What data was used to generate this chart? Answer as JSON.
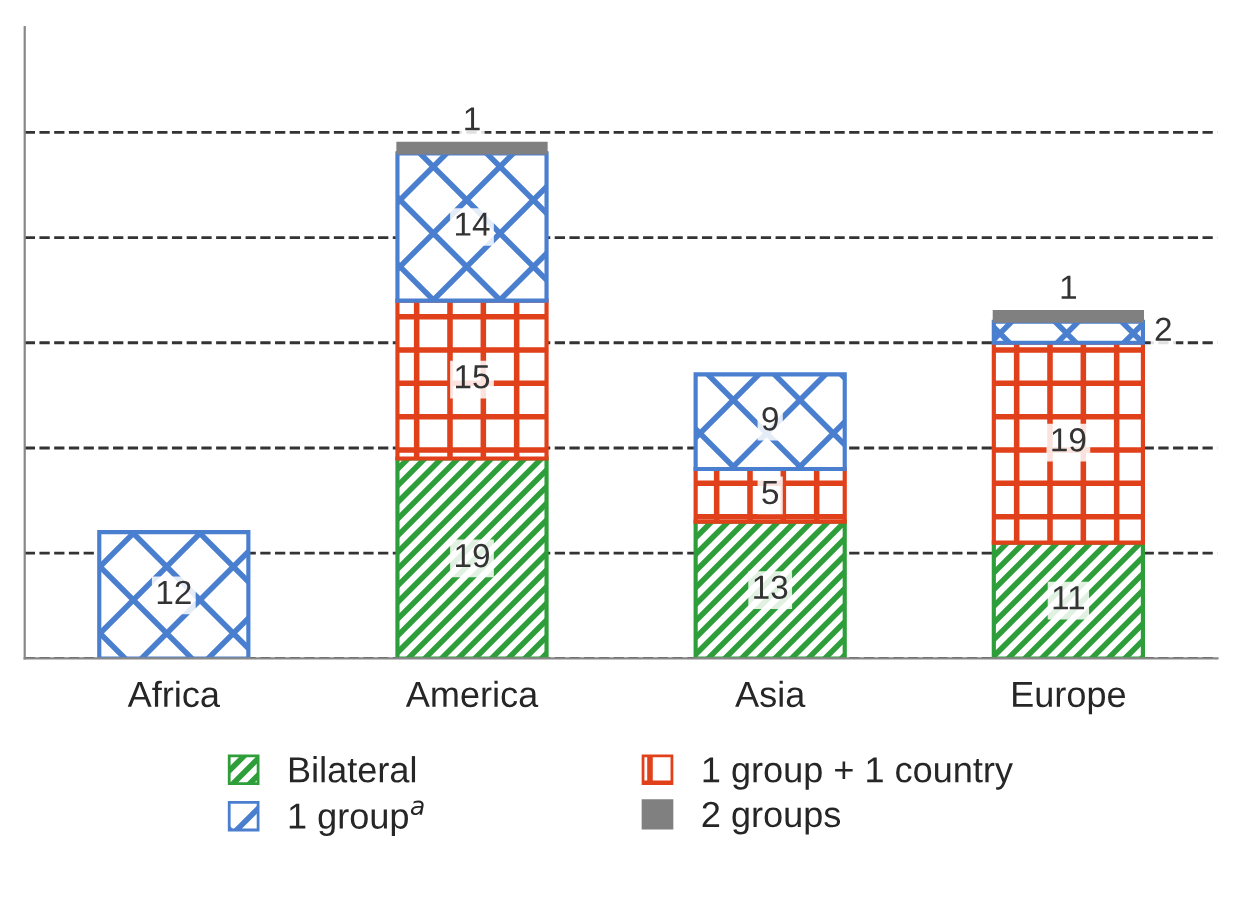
{
  "chart_data": {
    "type": "bar",
    "stacked": true,
    "categories": [
      "Africa",
      "America",
      "Asia",
      "Europe"
    ],
    "series": [
      {
        "name": "Bilateral",
        "color": "#2e9e3a",
        "values": [
          null,
          19,
          13,
          11
        ]
      },
      {
        "name": "1 group + 1 country",
        "color": "#e0401a",
        "values": [
          null,
          15,
          5,
          19
        ]
      },
      {
        "name": "1 group$^{a}$",
        "color": "#4a7fd0",
        "values": [
          12,
          14,
          9,
          2
        ]
      },
      {
        "name": "2 groups",
        "color": "#808080",
        "values": [
          null,
          1,
          null,
          1
        ]
      }
    ],
    "ylim": [
      0,
      60
    ],
    "yticks": [
      {
        "value": 0,
        "label": null
      },
      {
        "value": 10,
        "label": null
      },
      {
        "value": 20,
        "label": null
      },
      {
        "value": 30,
        "label": null
      },
      {
        "value": 40,
        "label": null
      },
      {
        "value": 50,
        "label": null
      }
    ],
    "grid": "y",
    "legend": "bottom",
    "data_labels": true,
    "tick_labels": "x"
  }
}
